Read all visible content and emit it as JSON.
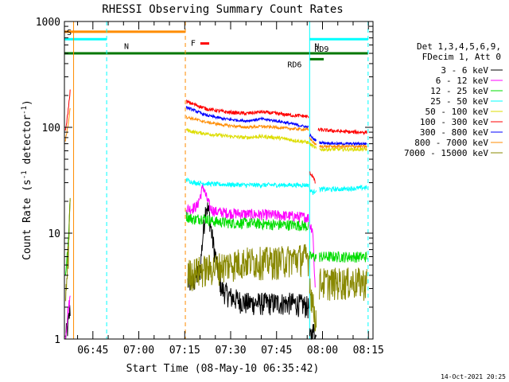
{
  "chart_data": {
    "type": "line",
    "title": "RHESSI Observing Summary Count Rates",
    "ylabel_main": "Count Rate (s",
    "ylabel_sup1": "-1",
    "ylabel_mid": " detector",
    "ylabel_sup2": "-1",
    "ylabel_end": ")",
    "xlabel": "Start Time (08-May-10 06:35:42)",
    "footer": "14-Oct-2021 20:25",
    "x_ticks": [
      {
        "t": 645,
        "label": "06:45"
      },
      {
        "t": 660,
        "label": "07:00"
      },
      {
        "t": 675,
        "label": "07:15"
      },
      {
        "t": 690,
        "label": "07:30"
      },
      {
        "t": 705,
        "label": "07:45"
      },
      {
        "t": 720,
        "label": "08:00"
      },
      {
        "t": 735,
        "label": "08:15"
      }
    ],
    "xlim_minutes": [
      635.7,
      736.5
    ],
    "y_scale": "log",
    "ylim": [
      1,
      1000
    ],
    "y_ticks": [
      {
        "v": 1,
        "label": "1"
      },
      {
        "v": 10,
        "label": "10"
      },
      {
        "v": 100,
        "label": "100"
      },
      {
        "v": 1000,
        "label": "1000"
      }
    ],
    "legend_header": [
      "Det 1,3,4,5,6,9,",
      "FDecim 1, Att 0"
    ],
    "legend": [
      {
        "label": "3 - 6 keV",
        "color": "#000000"
      },
      {
        "label": "6 - 12 keV",
        "color": "#ff00ff"
      },
      {
        "label": "12 - 25 keV",
        "color": "#00dd00"
      },
      {
        "label": "25 - 50 keV",
        "color": "#00ffff"
      },
      {
        "label": "50 - 100 keV",
        "color": "#dddd00"
      },
      {
        "label": "100 - 300 keV",
        "color": "#ff0000"
      },
      {
        "label": "300 - 800 keV",
        "color": "#0000ff"
      },
      {
        "label": "800 - 7000 keV",
        "color": "#ff8c00"
      },
      {
        "label": "7000 - 15000 keV",
        "color": "#888800"
      }
    ],
    "flags": [
      {
        "label": "S",
        "color": "#ff8c00",
        "start": 635.7,
        "end": 675.2,
        "level": 800
      },
      {
        "label": "N",
        "color": "#00ffff",
        "start": 635.7,
        "end": 649.5,
        "level": 680
      },
      {
        "label": "N",
        "color": "#00ffff",
        "start": 715.8,
        "end": 734.9,
        "level": 680
      },
      {
        "label": "F",
        "color": "#ff0000",
        "start": 680.1,
        "end": 683.0,
        "level": 620
      },
      {
        "label": "RD6",
        "color": "#007700",
        "start": 715.8,
        "end": 720.4,
        "level": 440
      },
      {
        "label": "RD9",
        "color": "#007700",
        "start": 635.7,
        "end": 734.9,
        "level": 500
      }
    ],
    "vlines": [
      {
        "t": 638.7,
        "color": "#ff8c00",
        "dash": false
      },
      {
        "t": 649.5,
        "color": "#00ffff",
        "dash": true
      },
      {
        "t": 675.2,
        "color": "#ff8c00",
        "dash": true
      },
      {
        "t": 715.8,
        "color": "#00ffff",
        "dash": false
      },
      {
        "t": 734.9,
        "color": "#00ffff",
        "dash": true
      }
    ],
    "series": [
      {
        "name": "3 - 6 keV",
        "color": "#000000",
        "noise": 0.25,
        "segments": [
          {
            "x": [
              636.0,
              637.0,
              637.6
            ],
            "y": [
              1.0,
              1.4,
              2.0
            ]
          },
          {
            "x": [
              676.0,
              678.0,
              680.0,
              681.0,
              682.0,
              683.0,
              684.0,
              685.5,
              687.0,
              690.0,
              695.0,
              700.0,
              705.0,
              710.0,
              714.0,
              715.5
            ],
            "y": [
              3.6,
              3.5,
              4.5,
              10.0,
              19.0,
              15.0,
              9.0,
              5.0,
              3.0,
              2.5,
              2.2,
              2.2,
              2.2,
              2.2,
              2.1,
              2.0
            ]
          },
          {
            "x": [
              715.8,
              717.0,
              718.0
            ],
            "y": [
              1.0,
              1.2,
              1.0
            ]
          }
        ]
      },
      {
        "name": "6 - 12 keV",
        "color": "#ff00ff",
        "noise": 0.12,
        "segments": [
          {
            "x": [
              636.0,
              636.8,
              637.6
            ],
            "y": [
              1.0,
              1.8,
              2.5
            ]
          },
          {
            "x": [
              675.5,
              677.0,
              679.0,
              680.0,
              681.0,
              682.0,
              683.5,
              685.0,
              690.0,
              695.0,
              700.0,
              705.0,
              710.0,
              714.0,
              715.5
            ],
            "y": [
              17.0,
              17.0,
              18.0,
              22.0,
              28.0,
              22.0,
              17.0,
              16.0,
              15.5,
              15.2,
              15.0,
              14.8,
              14.5,
              14.2,
              14.0
            ]
          },
          {
            "x": [
              715.8,
              716.8,
              717.6
            ],
            "y": [
              12.0,
              11.0,
              3.0
            ]
          }
        ]
      },
      {
        "name": "12 - 25 keV",
        "color": "#00dd00",
        "noise": 0.12,
        "segments": [
          {
            "x": [
              636.0,
              637.0,
              637.6
            ],
            "y": [
              4.0,
              8.0,
              25.0
            ]
          },
          {
            "x": [
              675.5,
              678.0,
              681.0,
              684.0,
              690.0,
              695.0,
              700.0,
              705.0,
              710.0,
              714.0,
              715.5
            ],
            "y": [
              14.5,
              13.5,
              14.0,
              13.0,
              12.5,
              12.5,
              12.3,
              12.0,
              12.0,
              11.8,
              11.5
            ]
          },
          {
            "x": [
              715.8,
              717.0,
              718.0
            ],
            "y": [
              6.0,
              6.0,
              6.0
            ]
          },
          {
            "x": [
              719.0,
              725.0,
              730.0,
              734.5
            ],
            "y": [
              6.0,
              6.0,
              6.0,
              6.0
            ]
          }
        ]
      },
      {
        "name": "25 - 50 keV",
        "color": "#00ffff",
        "noise": 0.05,
        "segments": [
          {
            "x": [
              675.5,
              678.0,
              685.0,
              695.0,
              705.0,
              710.0,
              715.5
            ],
            "y": [
              32.0,
              30.0,
              29.0,
              28.5,
              28.5,
              28.5,
              28.5
            ]
          },
          {
            "x": [
              715.8,
              717.0,
              718.0
            ],
            "y": [
              26.0,
              24.0,
              26.0
            ]
          },
          {
            "x": [
              719.0,
              725.0,
              730.0,
              734.5
            ],
            "y": [
              26.0,
              26.0,
              26.5,
              27.0
            ]
          }
        ]
      },
      {
        "name": "50 - 100 keV",
        "color": "#dddd00",
        "noise": 0.04,
        "segments": [
          {
            "x": [
              675.5,
              678.0,
              685.0,
              690.0,
              695.0,
              700.0,
              705.0,
              710.0,
              715.5
            ],
            "y": [
              95.0,
              90.0,
              85.0,
              82.0,
              80.0,
              82.0,
              80.0,
              76.0,
              72.0
            ]
          },
          {
            "x": [
              715.8,
              717.0,
              718.0
            ],
            "y": [
              70.0,
              66.0,
              63.0
            ]
          },
          {
            "x": [
              719.0,
              725.0,
              730.0,
              734.5
            ],
            "y": [
              62.0,
              62.0,
              62.0,
              62.0
            ]
          }
        ]
      },
      {
        "name": "100 - 300 keV",
        "color": "#ff0000",
        "noise": 0.04,
        "segments": [
          {
            "x": [
              636.0,
              637.0,
              637.6
            ],
            "y": [
              90.0,
              150.0,
              230.0
            ]
          },
          {
            "x": [
              675.5,
              678.0,
              682.0,
              688.0,
              695.0,
              700.0,
              705.0,
              710.0,
              714.0,
              715.5
            ],
            "y": [
              175.0,
              165.0,
              150.0,
              140.0,
              135.0,
              140.0,
              135.0,
              130.0,
              128.0,
              125.0
            ]
          },
          {
            "x": [
              715.8,
              716.8,
              717.6
            ],
            "y": [
              37.0,
              35.0,
              30.0
            ]
          },
          {
            "x": [
              718.5,
              725.0,
              730.0,
              734.5
            ],
            "y": [
              95.0,
              92.0,
              90.0,
              90.0
            ]
          }
        ]
      },
      {
        "name": "300 - 800 keV",
        "color": "#0000ff",
        "noise": 0.03,
        "segments": [
          {
            "x": [
              675.5,
              678.0,
              682.0,
              688.0,
              695.0,
              700.0,
              705.0,
              710.0,
              715.5
            ],
            "y": [
              155.0,
              145.0,
              130.0,
              120.0,
              115.0,
              120.0,
              115.0,
              108.0,
              100.0
            ]
          },
          {
            "x": [
              715.8,
              717.0,
              718.0
            ],
            "y": [
              85.0,
              78.0,
              75.0
            ]
          },
          {
            "x": [
              719.0,
              725.0,
              730.0,
              734.5
            ],
            "y": [
              72.0,
              70.0,
              70.0,
              70.0
            ]
          }
        ]
      },
      {
        "name": "800 - 7000 keV",
        "color": "#ff8c00",
        "noise": 0.03,
        "segments": [
          {
            "x": [
              636.0,
              637.0,
              637.6
            ],
            "y": [
              75.0,
              110.0,
              160.0
            ]
          },
          {
            "x": [
              675.5,
              678.0,
              682.0,
              688.0,
              695.0,
              700.0,
              705.0,
              710.0,
              715.5
            ],
            "y": [
              125.0,
              120.0,
              112.0,
              105.0,
              100.0,
              102.0,
              100.0,
              97.0,
              95.0
            ]
          },
          {
            "x": [
              715.8,
              717.0,
              718.0
            ],
            "y": [
              80.0,
              72.0,
              68.0
            ]
          },
          {
            "x": [
              719.0,
              725.0,
              730.0,
              734.5
            ],
            "y": [
              66.0,
              66.0,
              66.0,
              66.0
            ]
          }
        ]
      },
      {
        "name": "7000 - 15000 keV",
        "color": "#888800",
        "noise": 0.35,
        "segments": [
          {
            "x": [
              636.0,
              637.0,
              637.6
            ],
            "y": [
              2.0,
              7.0,
              24.0
            ]
          },
          {
            "x": [
              676.0,
              680.0,
              685.0,
              690.0,
              695.0,
              700.0,
              705.0,
              710.0,
              715.5
            ],
            "y": [
              4.2,
              4.5,
              4.8,
              5.2,
              5.5,
              5.5,
              5.5,
              5.8,
              6.0
            ]
          },
          {
            "x": [
              715.8,
              717.0,
              718.0
            ],
            "y": [
              3.5,
              2.0,
              1.5
            ]
          },
          {
            "x": [
              719.0,
              725.0,
              730.0,
              734.5
            ],
            "y": [
              3.5,
              3.5,
              3.5,
              3.5
            ]
          }
        ]
      }
    ]
  }
}
